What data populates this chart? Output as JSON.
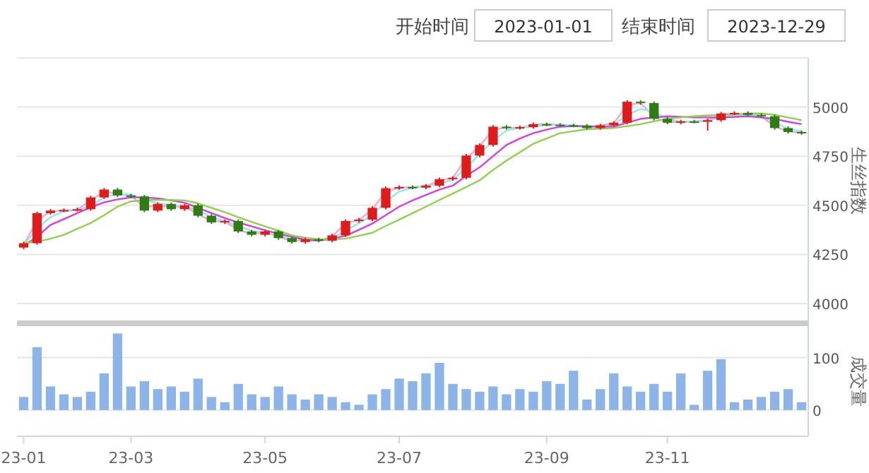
{
  "chart_data": [
    {
      "type": "candlestick",
      "ylabel": "生丝指数",
      "annotations": [
        "开始时间",
        "2023-01-01",
        "结束时间",
        "2023-12-29"
      ],
      "grid": "y",
      "tick_labels": "y",
      "categories": [
        null,
        null,
        null,
        null,
        null,
        null,
        null,
        null,
        null,
        null,
        null,
        null,
        null,
        null,
        null,
        null,
        null,
        null,
        null,
        null,
        null,
        null,
        null,
        null,
        null,
        null,
        null,
        null,
        null,
        null,
        null,
        null,
        null,
        null,
        null,
        null,
        null,
        null,
        null,
        null,
        null,
        null,
        null,
        null,
        null,
        null,
        null,
        null,
        null,
        null,
        null,
        null,
        null,
        null,
        null,
        null,
        null,
        null,
        null
      ],
      "ylim": [
        4000,
        5250
      ],
      "yticks": [
        4000,
        4250,
        4500,
        4750,
        5000,
        {
          "value": 5250,
          "label": null
        }
      ],
      "ohlc": [
        [
          4285,
          4315,
          4277,
          4307
        ],
        [
          4307,
          4468,
          4299,
          4460
        ],
        [
          4460,
          4481,
          4452,
          4473
        ],
        [
          4473,
          4484,
          4465,
          4476
        ],
        [
          4476,
          4488,
          4468,
          4480
        ],
        [
          4480,
          4548,
          4472,
          4540
        ],
        [
          4540,
          4588,
          4532,
          4580
        ],
        [
          4580,
          4588,
          4542,
          4550
        ],
        [
          4550,
          4558,
          4537,
          4545
        ],
        [
          4545,
          4553,
          4465,
          4473
        ],
        [
          4473,
          4515,
          4465,
          4507
        ],
        [
          4507,
          4515,
          4472,
          4480
        ],
        [
          4480,
          4508,
          4472,
          4500
        ],
        [
          4500,
          4508,
          4439,
          4447
        ],
        [
          4447,
          4455,
          4405,
          4413
        ],
        [
          4413,
          4428,
          4405,
          4420
        ],
        [
          4420,
          4428,
          4359,
          4367
        ],
        [
          4367,
          4375,
          4342,
          4350
        ],
        [
          4350,
          4375,
          4342,
          4367
        ],
        [
          4367,
          4375,
          4325,
          4333
        ],
        [
          4333,
          4341,
          4305,
          4313
        ],
        [
          4313,
          4335,
          4305,
          4327
        ],
        [
          4327,
          4335,
          4312,
          4320
        ],
        [
          4320,
          4355,
          4312,
          4347
        ],
        [
          4347,
          4428,
          4339,
          4420
        ],
        [
          4420,
          4435,
          4412,
          4427
        ],
        [
          4427,
          4495,
          4419,
          4487
        ],
        [
          4487,
          4595,
          4479,
          4587
        ],
        [
          4587,
          4601,
          4579,
          4593
        ],
        [
          4593,
          4601,
          4582,
          4590
        ],
        [
          4590,
          4608,
          4582,
          4600
        ],
        [
          4600,
          4641,
          4592,
          4633
        ],
        [
          4633,
          4648,
          4625,
          4640
        ],
        [
          4640,
          4761,
          4632,
          4753
        ],
        [
          4753,
          4815,
          4745,
          4807
        ],
        [
          4807,
          4908,
          4799,
          4900
        ],
        [
          4900,
          4908,
          4885,
          4893
        ],
        [
          4893,
          4906,
          4885,
          4898
        ],
        [
          4898,
          4921,
          4890,
          4913
        ],
        [
          4913,
          4921,
          4902,
          4910
        ],
        [
          4910,
          4918,
          4899,
          4907
        ],
        [
          4907,
          4915,
          4897,
          4905
        ],
        [
          4905,
          4913,
          4885,
          4893
        ],
        [
          4893,
          4915,
          4885,
          4907
        ],
        [
          4907,
          4928,
          4899,
          4920
        ],
        [
          4920,
          5035,
          4912,
          5027
        ],
        [
          5027,
          5035,
          5012,
          5020
        ],
        [
          5020,
          5028,
          4932,
          4940
        ],
        [
          4940,
          4948,
          4912,
          4920
        ],
        [
          4920,
          4935,
          4912,
          4927
        ],
        [
          4927,
          4935,
          4917,
          4925
        ],
        [
          4925,
          4941,
          4880,
          4933
        ],
        [
          4933,
          4975,
          4925,
          4967
        ],
        [
          4967,
          4978,
          4959,
          4970
        ],
        [
          4970,
          4978,
          4952,
          4960
        ],
        [
          4960,
          4968,
          4945,
          4953
        ],
        [
          4953,
          4961,
          4885,
          4893
        ],
        [
          4893,
          4901,
          4865,
          4873
        ],
        [
          4873,
          4881,
          4859,
          4867
        ]
      ],
      "colors": [
        "#e01b1b",
        "#e01b1b",
        "#e01b1b",
        "#e01b1b",
        "#e01b1b",
        "#e01b1b",
        "#e01b1b",
        "#2f7d12",
        "#2f7d12",
        "#2f7d12",
        "#e01b1b",
        "#2f7d12",
        "#e01b1b",
        "#2f7d12",
        "#2f7d12",
        "#e01b1b",
        "#2f7d12",
        "#2f7d12",
        "#e01b1b",
        "#2f7d12",
        "#2f7d12",
        "#e01b1b",
        "#2f7d12",
        "#e01b1b",
        "#e01b1b",
        "#e01b1b",
        "#e01b1b",
        "#e01b1b",
        "#e01b1b",
        "#2f7d12",
        "#e01b1b",
        "#e01b1b",
        "#e01b1b",
        "#e01b1b",
        "#e01b1b",
        "#e01b1b",
        "#2f7d12",
        "#e01b1b",
        "#e01b1b",
        "#2f7d12",
        "#2f7d12",
        "#2f7d12",
        "#2f7d12",
        "#e01b1b",
        "#e01b1b",
        "#e01b1b",
        "#2f7d12",
        "#2f7d12",
        "#2f7d12",
        "#e01b1b",
        "#2f7d12",
        "#e01b1b",
        "#e01b1b",
        "#e01b1b",
        "#2f7d12",
        "#2f7d12",
        "#2f7d12",
        "#2f7d12",
        "#2f7d12"
      ],
      "series": [
        {
          "type": "line",
          "color": "#f4a6cc",
          "values": [
            4300,
            4420,
            4470,
            4473,
            4478,
            4525,
            4570,
            4560,
            4548,
            4490,
            4500,
            4490,
            4495,
            4455,
            4420,
            4418,
            4375,
            4355,
            4362,
            4340,
            4318,
            4325,
            4320,
            4340,
            4410,
            4425,
            4480,
            4570,
            4590,
            4593,
            4598,
            4625,
            4640,
            4740,
            4800,
            4885,
            4895,
            4893,
            4910,
            4913,
            4908,
            4907,
            4895,
            4905,
            4918,
            5010,
            5020,
            4950,
            4922,
            4926,
            4927,
            4932,
            4965,
            4967,
            4960,
            4953,
            4900,
            4876,
            4868
          ]
        },
        {
          "type": "line",
          "color": "#8ee8f2",
          "values": [
            4300,
            4380,
            4440,
            4470,
            4475,
            4500,
            4540,
            4560,
            4555,
            4530,
            4510,
            4500,
            4495,
            4475,
            4440,
            4420,
            4395,
            4370,
            4360,
            4345,
            4330,
            4322,
            4320,
            4330,
            4370,
            4410,
            4450,
            4520,
            4570,
            4590,
            4595,
            4610,
            4630,
            4690,
            4760,
            4830,
            4880,
            4895,
            4900,
            4910,
            4910,
            4907,
            4900,
            4900,
            4910,
            4960,
            4990,
            4975,
            4940,
            4925,
            4925,
            4930,
            4950,
            4960,
            4962,
            4955,
            4920,
            4890,
            4875
          ]
        },
        {
          "type": "line",
          "color": "#d63fe0",
          "values": [
            4293,
            4340,
            4400,
            4430,
            4460,
            4490,
            4515,
            4530,
            4540,
            4540,
            4535,
            4525,
            4513,
            4487,
            4460,
            4435,
            4413,
            4393,
            4373,
            4355,
            4340,
            4325,
            4320,
            4330,
            4345,
            4375,
            4407,
            4450,
            4493,
            4525,
            4553,
            4580,
            4600,
            4650,
            4693,
            4750,
            4807,
            4840,
            4867,
            4885,
            4900,
            4903,
            4903,
            4900,
            4900,
            4920,
            4940,
            4947,
            4953,
            4950,
            4947,
            4947,
            4947,
            4950,
            4953,
            4947,
            4940,
            4925,
            4913
          ]
        },
        {
          "type": "line",
          "color": "#8fd14f",
          "values": [
            4307,
            4315,
            4330,
            4350,
            4380,
            4410,
            4450,
            4493,
            4520,
            4527,
            4527,
            4527,
            4525,
            4510,
            4487,
            4465,
            4440,
            4415,
            4393,
            4370,
            4347,
            4335,
            4327,
            4327,
            4330,
            4345,
            4360,
            4395,
            4427,
            4460,
            4493,
            4527,
            4560,
            4593,
            4627,
            4680,
            4727,
            4770,
            4813,
            4840,
            4867,
            4877,
            4887,
            4890,
            4893,
            4903,
            4913,
            4927,
            4940,
            4947,
            4953,
            4957,
            4960,
            4963,
            4967,
            4967,
            4960,
            4947,
            4933
          ]
        }
      ]
    },
    {
      "type": "bar",
      "ylabel": "成交量",
      "grid": "y",
      "color": "#8cb4e8",
      "categories": [
        "23-01",
        null,
        null,
        null,
        null,
        null,
        null,
        null,
        "23-03",
        null,
        null,
        null,
        null,
        null,
        null,
        null,
        null,
        null,
        "23-05",
        null,
        null,
        null,
        null,
        null,
        null,
        null,
        null,
        null,
        "23-07",
        null,
        null,
        null,
        null,
        null,
        null,
        null,
        null,
        null,
        null,
        "23-09",
        null,
        null,
        null,
        null,
        null,
        null,
        null,
        null,
        "23-11",
        null,
        null,
        null,
        null,
        null,
        null,
        null,
        null,
        null,
        null
      ],
      "ylim": [
        -50,
        160
      ],
      "yticks": [
        0,
        100
      ],
      "values": [
        25,
        120,
        45,
        30,
        25,
        35,
        70,
        146,
        45,
        55,
        40,
        45,
        35,
        60,
        25,
        15,
        50,
        30,
        25,
        45,
        30,
        20,
        30,
        25,
        15,
        10,
        30,
        40,
        60,
        55,
        70,
        90,
        50,
        40,
        35,
        45,
        30,
        40,
        35,
        55,
        50,
        75,
        20,
        40,
        70,
        45,
        35,
        50,
        35,
        70,
        10,
        75,
        97,
        15,
        20,
        25,
        35,
        40,
        15
      ]
    }
  ]
}
